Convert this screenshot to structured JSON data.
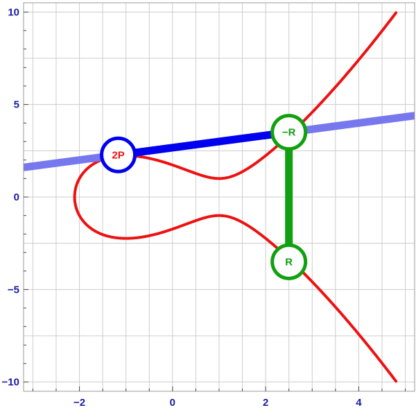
{
  "chart_data": {
    "type": "line",
    "xlim": [
      -3.2,
      5.2
    ],
    "ylim": [
      -10.5,
      10.5
    ],
    "xticks": [
      -2,
      0,
      2,
      4
    ],
    "xtick_labels": [
      "−2",
      "0",
      "2",
      "4"
    ],
    "yticks": [
      -10,
      -5,
      0,
      5,
      10
    ],
    "ytick_labels": [
      "−10",
      "−5",
      "0",
      "5",
      "10"
    ],
    "grid": true,
    "grid_x": [
      -3,
      -2.5,
      -2,
      -1.5,
      -1,
      -0.5,
      0,
      0.5,
      1,
      1.5,
      2,
      2.5,
      3,
      3.5,
      4,
      4.5,
      5
    ],
    "grid_y": [
      -10,
      -7.5,
      -5,
      -2.5,
      0,
      2.5,
      5,
      7.5,
      10
    ],
    "series": [
      {
        "role": "curve",
        "equation": "y^2 = x^3 - 3x + 3",
        "color": "#ee1111",
        "x_range": [
          -2.1038,
          4.8
        ]
      },
      {
        "role": "secant",
        "color": "#7777ee",
        "slope": 0.3333,
        "intercept": 2.6667,
        "x_range": [
          -3.2,
          5.2
        ]
      },
      {
        "role": "segment",
        "color": "#0000ee",
        "from": [
          -1.1662,
          2.2779
        ],
        "to": [
          2.4995,
          3.4998
        ]
      },
      {
        "role": "segment",
        "color": "#11a011",
        "from": [
          2.4995,
          3.4998
        ],
        "to": [
          2.4995,
          -3.4998
        ]
      }
    ],
    "points": [
      {
        "label": "2P",
        "x": -1.1662,
        "y": 2.2779,
        "color": "#0000ee",
        "label_color": "#ee1111"
      },
      {
        "label": "−R",
        "x": 2.4995,
        "y": 3.4998,
        "color": "#11a011",
        "label_color": "#11a011"
      },
      {
        "label": "R",
        "x": 2.4995,
        "y": -3.4998,
        "color": "#11a011",
        "label_color": "#11a011"
      }
    ],
    "frame_color": "#999999",
    "grid_color": "#cccccc"
  }
}
